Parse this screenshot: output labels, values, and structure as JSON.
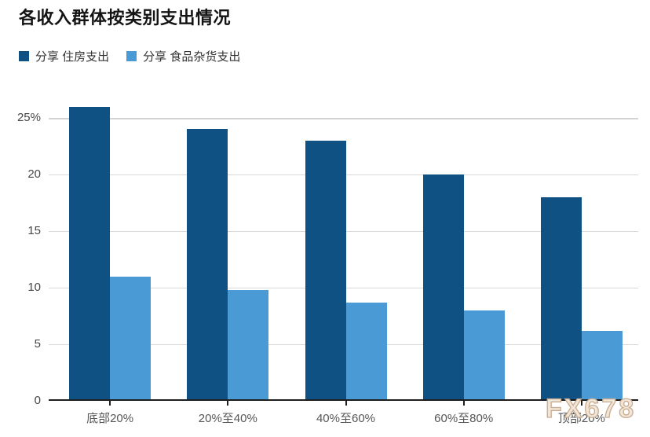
{
  "title": "各收入群体按类别支出情况",
  "legend": {
    "items": [
      {
        "label": "分享 住房支出",
        "color": "#0f5183"
      },
      {
        "label": "分享 食品杂货支出",
        "color": "#4a9bd5"
      }
    ]
  },
  "watermark": "FX678",
  "colors": {
    "housing": "#0f5183",
    "groceries": "#4a9bd5",
    "gridline": "#d9d9d9",
    "axis": "#1f1f1f"
  },
  "chart_data": {
    "type": "bar",
    "title": "各收入群体按类别支出情况",
    "categories": [
      "底部20%",
      "20%至40%",
      "40%至60%",
      "60%至80%",
      "顶部20%"
    ],
    "series": [
      {
        "name": "分享 住房支出",
        "color": "#0f5183",
        "values": [
          26,
          24,
          23,
          20,
          18
        ]
      },
      {
        "name": "分享 食品杂货支出",
        "color": "#4a9bd5",
        "values": [
          11,
          9.8,
          8.7,
          8,
          6.2
        ]
      }
    ],
    "xlabel": "",
    "ylabel": "",
    "ylim": [
      0,
      27
    ],
    "yticks": [
      0,
      5,
      10,
      15,
      20,
      25
    ],
    "ytick_labels": [
      "0",
      "5",
      "10",
      "15",
      "20",
      "25%"
    ],
    "grid": true,
    "legend_position": "top-left",
    "unit": "%"
  }
}
